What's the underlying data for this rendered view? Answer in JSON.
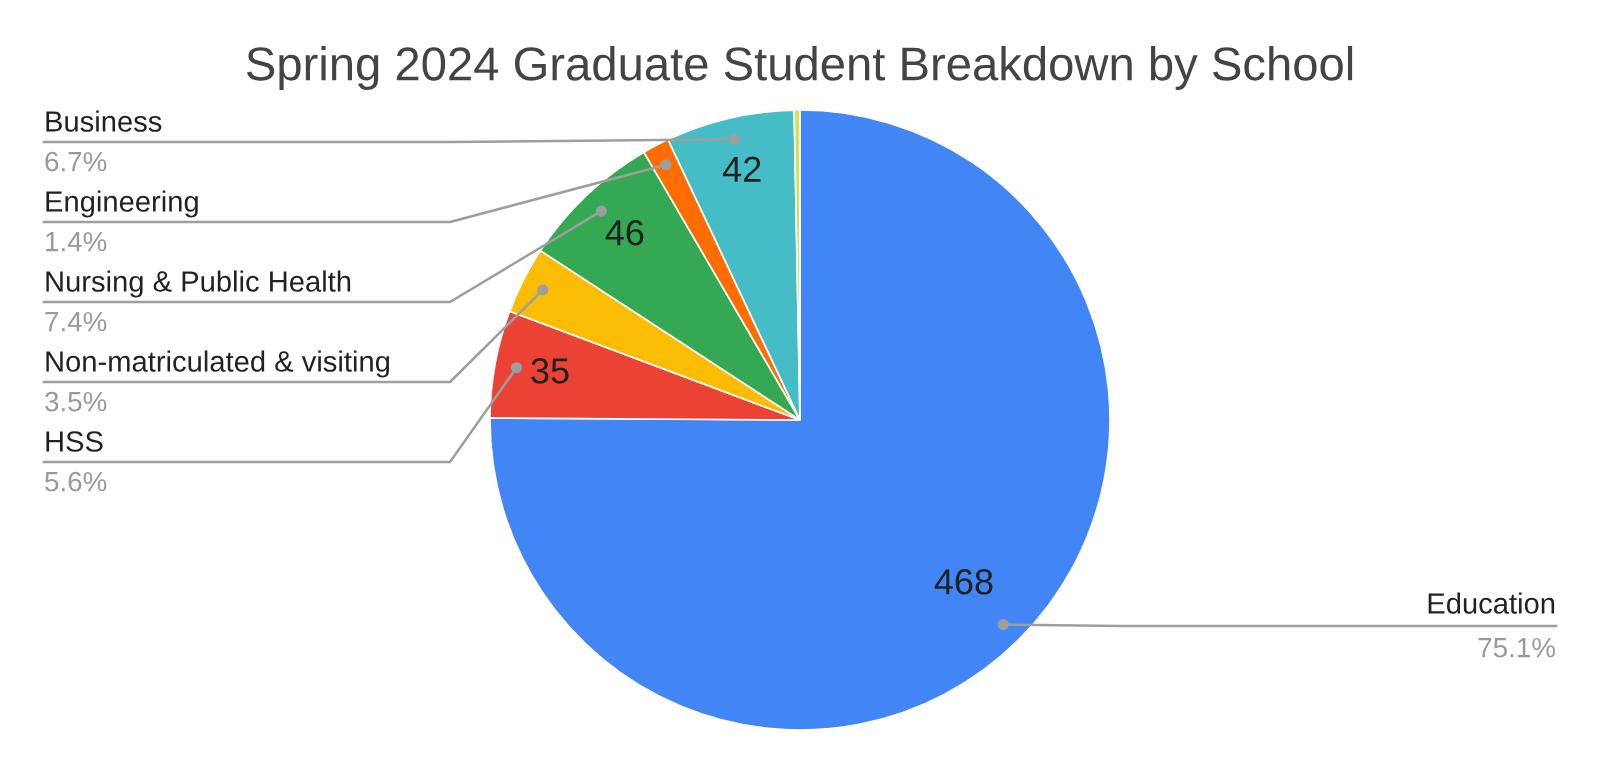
{
  "chart_data": {
    "type": "pie",
    "title": "Spring 2024 Graduate Student Breakdown by School",
    "categories": [
      "Education",
      "HSS",
      "Non-matriculated & visiting",
      "Nursing & Public Health",
      "Engineering",
      "Business",
      null
    ],
    "values": [
      75.1,
      5.6,
      3.5,
      7.4,
      1.4,
      6.7,
      0.3
    ],
    "colors": [
      "#4285f4",
      "#ea4335",
      "#fbbc04",
      "#34a853",
      "#ff6d01",
      "#46bdc6",
      "#d4e157"
    ],
    "value_labels": [
      "75.1%",
      "5.6%",
      "3.5%",
      "7.4%",
      "1.4%",
      "6.7%",
      null
    ],
    "annotations": [
      {
        "text": "468",
        "x": "Education"
      },
      {
        "text": "35",
        "x": "HSS"
      },
      {
        "text": "46",
        "x": "Nursing & Public Health"
      },
      {
        "text": "42",
        "x": "Business"
      }
    ],
    "legend": false
  }
}
